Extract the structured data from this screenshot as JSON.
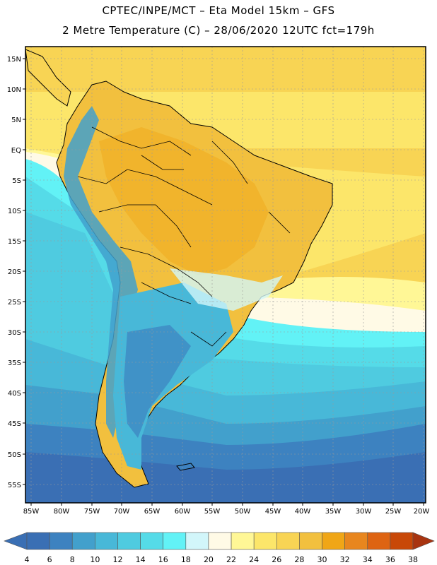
{
  "title_line1": "CPTEC/INPE/MCT –  Eta Model 15km – GFS",
  "title_line2": "2 Metre Temperature (C) – 28/06/2020 12UTC fct=179h",
  "map": {
    "lat_labels": [
      "15N",
      "10N",
      "5N",
      "EQ",
      "5S",
      "10S",
      "15S",
      "20S",
      "25S",
      "30S",
      "35S",
      "40S",
      "45S",
      "50S",
      "55S"
    ],
    "lon_labels": [
      "85W",
      "80W",
      "75W",
      "70W",
      "65W",
      "60W",
      "55W",
      "50W",
      "45W",
      "40W",
      "35W",
      "30W",
      "25W",
      "20W"
    ],
    "colorbar": {
      "ticks": [
        "4",
        "6",
        "8",
        "10",
        "12",
        "14",
        "16",
        "18",
        "20",
        "22",
        "24",
        "26",
        "28",
        "30",
        "32",
        "34",
        "36",
        "38"
      ],
      "colors": [
        "#3a6fb4",
        "#3d82c0",
        "#42a0cc",
        "#48b8d8",
        "#4fcbe0",
        "#55dbe8",
        "#62f2f6",
        "#d2f6fa",
        "#fffae6",
        "#fff796",
        "#fce66a",
        "#f8d454",
        "#f2c03e",
        "#f0a616",
        "#e8861e",
        "#de6412",
        "#c84808",
        "#a83410"
      ]
    }
  }
}
